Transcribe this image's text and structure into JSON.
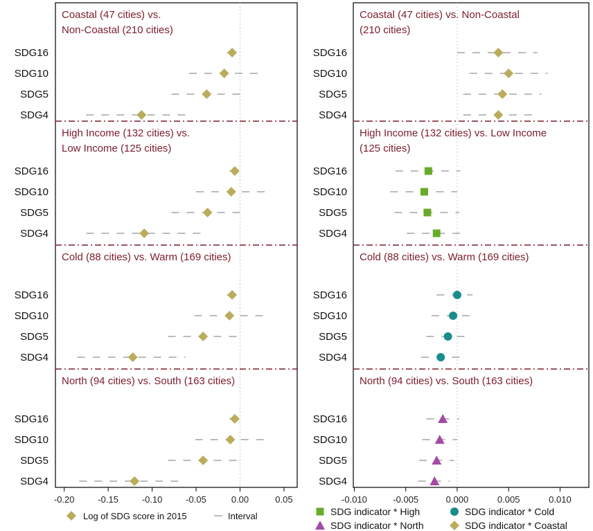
{
  "chart_data": [
    {
      "type": "scatter",
      "panel": "left",
      "xlim": [
        -0.21,
        0.065
      ],
      "ticks": [
        -0.2,
        -0.15,
        -0.1,
        -0.05,
        0.0,
        0.05
      ],
      "tick_labels": [
        "-0.20",
        "-0.15",
        "-0.10",
        "-0.05",
        "0.00",
        "0.05"
      ],
      "reference_line_x": 0,
      "categories": [
        "SDG16",
        "SDG10",
        "SDG5",
        "SDG4"
      ],
      "legend": {
        "position": "bottom",
        "entries": [
          {
            "label": "Log of SDG score in 2015",
            "marker": "diamond",
            "color": "#b9ad5b"
          },
          {
            "label": "Interval",
            "marker": "dash",
            "color": "#bbbbbb"
          }
        ]
      },
      "groups": [
        {
          "title_lines": [
            "Coastal (47 cities) vs.",
            "Non-Coastal (210 cities)"
          ],
          "marker": "diamond",
          "color": "#b9ad5b",
          "points": [
            {
              "label": "SDG16",
              "value": -0.009,
              "lo": -0.015,
              "hi": -0.003
            },
            {
              "label": "SDG10",
              "value": -0.018,
              "lo": -0.058,
              "hi": 0.022
            },
            {
              "label": "SDG5",
              "value": -0.038,
              "lo": -0.078,
              "hi": 0.002
            },
            {
              "label": "SDG4",
              "value": -0.112,
              "lo": -0.175,
              "hi": -0.055
            }
          ]
        },
        {
          "title_lines": [
            "High Income (132 cities) vs.",
            "Low Income (125 cities)"
          ],
          "marker": "diamond",
          "color": "#b9ad5b",
          "points": [
            {
              "label": "SDG16",
              "value": -0.006,
              "lo": -0.012,
              "hi": 0.0
            },
            {
              "label": "SDG10",
              "value": -0.01,
              "lo": -0.05,
              "hi": 0.03
            },
            {
              "label": "SDG5",
              "value": -0.037,
              "lo": -0.078,
              "hi": 0.003
            },
            {
              "label": "SDG4",
              "value": -0.109,
              "lo": -0.175,
              "hi": -0.044
            }
          ]
        },
        {
          "title_lines": [
            "Cold (88 cities) vs. Warm (169 cities)"
          ],
          "marker": "diamond",
          "color": "#b9ad5b",
          "points": [
            {
              "label": "SDG16",
              "value": -0.009,
              "lo": -0.015,
              "hi": -0.003
            },
            {
              "label": "SDG10",
              "value": -0.012,
              "lo": -0.052,
              "hi": 0.028
            },
            {
              "label": "SDG5",
              "value": -0.042,
              "lo": -0.082,
              "hi": -0.002
            },
            {
              "label": "SDG4",
              "value": -0.122,
              "lo": -0.185,
              "hi": -0.062
            }
          ]
        },
        {
          "title_lines": [
            "North (94 cities) vs. South (163 cities)"
          ],
          "marker": "diamond",
          "color": "#b9ad5b",
          "points": [
            {
              "label": "SDG16",
              "value": -0.006,
              "lo": -0.012,
              "hi": 0.0
            },
            {
              "label": "SDG10",
              "value": -0.011,
              "lo": -0.051,
              "hi": 0.029
            },
            {
              "label": "SDG5",
              "value": -0.042,
              "lo": -0.082,
              "hi": -0.002
            },
            {
              "label": "SDG4",
              "value": -0.12,
              "lo": -0.183,
              "hi": -0.062
            }
          ]
        }
      ]
    },
    {
      "type": "scatter",
      "panel": "right",
      "xlim": [
        -0.0101,
        0.0128
      ],
      "ticks": [
        -0.01,
        -0.005,
        0.0,
        0.005,
        0.01
      ],
      "tick_labels": [
        "-0.010",
        "-0.005",
        "0.000",
        "0.005",
        "0.010"
      ],
      "reference_line_x": 0,
      "categories": [
        "SDG16",
        "SDG10",
        "SDG5",
        "SDG4"
      ],
      "legend": {
        "position": "bottom",
        "entries": [
          {
            "label": "SDG indicator * High",
            "marker": "square",
            "color": "#6aaa2b"
          },
          {
            "label": "SDG indicator * Cold",
            "marker": "circle",
            "color": "#1a8c8c"
          },
          {
            "label": "SDG indicator * North",
            "marker": "triangle",
            "color": "#a44aa6"
          },
          {
            "label": "SDG indicator * Coastal",
            "marker": "diamond",
            "color": "#b9ad5b"
          }
        ]
      },
      "groups": [
        {
          "title_lines": [
            "Coastal (47 cities) vs. Non-Coastal",
            "(210 cities)"
          ],
          "marker": "diamond",
          "color": "#b9ad5b",
          "points": [
            {
              "label": "SDG16",
              "value": 0.004,
              "lo": 0.0,
              "hi": 0.0078
            },
            {
              "label": "SDG10",
              "value": 0.005,
              "lo": 0.0012,
              "hi": 0.0088
            },
            {
              "label": "SDG5",
              "value": 0.0044,
              "lo": 0.0006,
              "hi": 0.0082
            },
            {
              "label": "SDG4",
              "value": 0.004,
              "lo": 0.0006,
              "hi": 0.0074
            }
          ]
        },
        {
          "title_lines": [
            "High Income (132 cities) vs. Low Income",
            "(125 cities)"
          ],
          "marker": "square",
          "color": "#6aaa2b",
          "points": [
            {
              "label": "SDG16",
              "value": -0.0028,
              "lo": -0.006,
              "hi": 0.0003
            },
            {
              "label": "SDG10",
              "value": -0.0032,
              "lo": -0.0065,
              "hi": 0.0
            },
            {
              "label": "SDG5",
              "value": -0.0029,
              "lo": -0.0061,
              "hi": 0.0002
            },
            {
              "label": "SDG4",
              "value": -0.002,
              "lo": -0.0049,
              "hi": 0.001
            }
          ]
        },
        {
          "title_lines": [
            "Cold (88 cities) vs. Warm (169 cities)"
          ],
          "marker": "circle",
          "color": "#1a8c8c",
          "points": [
            {
              "label": "SDG16",
              "value": 0.0,
              "lo": -0.002,
              "hi": 0.0015
            },
            {
              "label": "SDG10",
              "value": -0.0004,
              "lo": -0.0025,
              "hi": 0.0012
            },
            {
              "label": "SDG5",
              "value": -0.0009,
              "lo": -0.003,
              "hi": 0.0008
            },
            {
              "label": "SDG4",
              "value": -0.0016,
              "lo": -0.0035,
              "hi": 0.0004
            }
          ]
        },
        {
          "title_lines": [
            "North (94 cities) vs. South (163 cities)"
          ],
          "marker": "triangle",
          "color": "#a44aa6",
          "points": [
            {
              "label": "SDG16",
              "value": -0.0014,
              "lo": -0.003,
              "hi": 0.0002
            },
            {
              "label": "SDG10",
              "value": -0.0017,
              "lo": -0.0034,
              "hi": 0.0
            },
            {
              "label": "SDG5",
              "value": -0.002,
              "lo": -0.0037,
              "hi": -0.0003
            },
            {
              "label": "SDG4",
              "value": -0.0022,
              "lo": -0.0038,
              "hi": -0.0007
            }
          ]
        }
      ]
    }
  ],
  "colors": {
    "title_text": "#7a1d2c",
    "separator": "#7a1d2c",
    "interval": "#bbbbbb",
    "reference_line": "#cccccc",
    "axis": "#000000"
  }
}
